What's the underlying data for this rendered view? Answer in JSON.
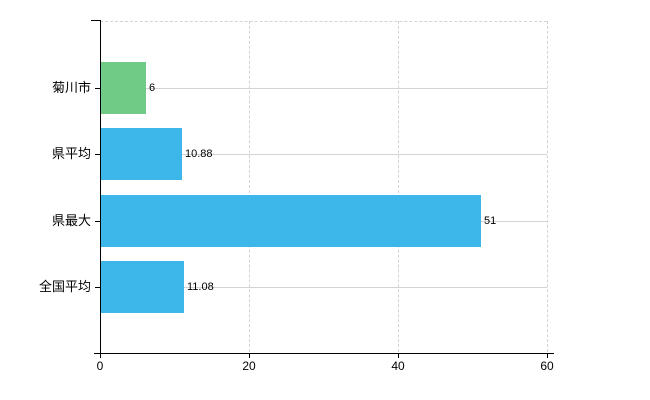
{
  "chart_data": {
    "type": "bar",
    "orientation": "horizontal",
    "title": "",
    "xlabel": "",
    "ylabel": "",
    "categories": [
      "菊川市",
      "県平均",
      "県最大",
      "全国平均"
    ],
    "values": [
      6,
      10.88,
      51,
      11.08
    ],
    "value_labels": [
      "6",
      "10.88",
      "51",
      "11.08"
    ],
    "bar_colors": [
      "#6fcb85",
      "#3db7ea",
      "#3db7ea",
      "#3db7ea"
    ],
    "x_ticks": [
      0,
      20,
      40,
      60
    ],
    "x_tick_labels": [
      "0",
      "20",
      "40",
      "60"
    ],
    "xlim": [
      0,
      60
    ],
    "grid": true,
    "legend": "none",
    "colors": {
      "gridline": "#d3d3d3",
      "axis": "#000000",
      "text": "#000000",
      "background": "#ffffff",
      "bar_green": "#6fcb85",
      "bar_blue": "#3db7ea"
    }
  }
}
